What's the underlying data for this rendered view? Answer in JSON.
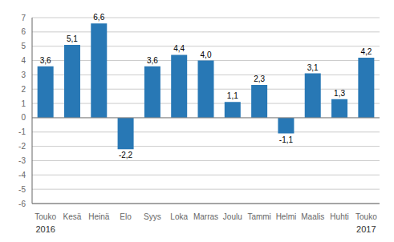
{
  "chart_data": {
    "type": "bar",
    "categories": [
      "Touko",
      "Kesä",
      "Heinä",
      "Elo",
      "Syys",
      "Loka",
      "Marras",
      "Joulu",
      "Tammi",
      "Helmi",
      "Maalis",
      "Huhti",
      "Touko"
    ],
    "values": [
      3.6,
      5.1,
      6.6,
      -2.2,
      3.6,
      4.4,
      4.0,
      1.1,
      2.3,
      -1.1,
      3.1,
      1.3,
      4.2
    ],
    "value_labels": [
      "3,6",
      "5,1",
      "6,6",
      "-2,2",
      "3,6",
      "4,4",
      "4,0",
      "1,1",
      "2,3",
      "-1,1",
      "3,1",
      "1,3",
      "4,2"
    ],
    "data_labels": true,
    "color": "#2878b5",
    "ylim": [
      -6,
      7
    ],
    "yticks": [
      -6,
      -5,
      -4,
      -3,
      -2,
      -1,
      0,
      1,
      2,
      3,
      4,
      5,
      6,
      7
    ],
    "grid": true,
    "annotations": [
      "2016",
      "2017"
    ]
  }
}
